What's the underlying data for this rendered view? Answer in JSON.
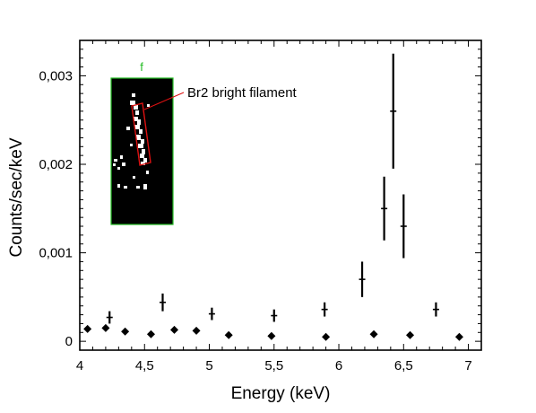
{
  "chart_data": {
    "type": "scatter",
    "title": "",
    "xlabel": "Energy (keV)",
    "ylabel": "Counts/sec/keV",
    "xlim": [
      4.0,
      7.1
    ],
    "ylim": [
      -0.0001,
      0.0034
    ],
    "xticks": [
      4,
      4.5,
      5,
      5.5,
      6,
      6.5,
      7
    ],
    "xtick_labels": [
      "4",
      "4,5",
      "5",
      "5,5",
      "6",
      "6,5",
      "7"
    ],
    "yticks": [
      0,
      0.001,
      0.002,
      0.003
    ],
    "ytick_labels": [
      "0",
      "0,001",
      "0,002",
      "0,003"
    ],
    "grid": false,
    "series": [
      {
        "marker": "cross-errorbar",
        "x": [
          4.23,
          4.64,
          5.02,
          5.5,
          5.89,
          6.18,
          6.35,
          6.42,
          6.5,
          6.75
        ],
        "y": [
          0.00027,
          0.00044,
          0.00031,
          0.00029,
          0.00036,
          0.0007,
          0.0015,
          0.0026,
          0.0013,
          0.00036
        ],
        "yerr": [
          7e-05,
          0.0001,
          7e-05,
          7e-05,
          8e-05,
          0.0002,
          0.00036,
          0.00065,
          0.00036,
          8e-05
        ],
        "color": "#000000"
      },
      {
        "marker": "diamond",
        "x": [
          4.06,
          4.2,
          4.35,
          4.55,
          4.73,
          4.9,
          5.15,
          5.48,
          5.9,
          6.27,
          6.55,
          6.93
        ],
        "y": [
          0.00014,
          0.00015,
          0.00011,
          8e-05,
          0.00013,
          0.00012,
          7e-05,
          6e-05,
          5e-05,
          8e-05,
          7e-05,
          5e-05
        ],
        "color": "#000000"
      }
    ],
    "inset": {
      "panel_letter": "f",
      "annotation": "Br2 bright filament",
      "frame_color": "#22bb22",
      "region_color": "#dd1111"
    }
  }
}
